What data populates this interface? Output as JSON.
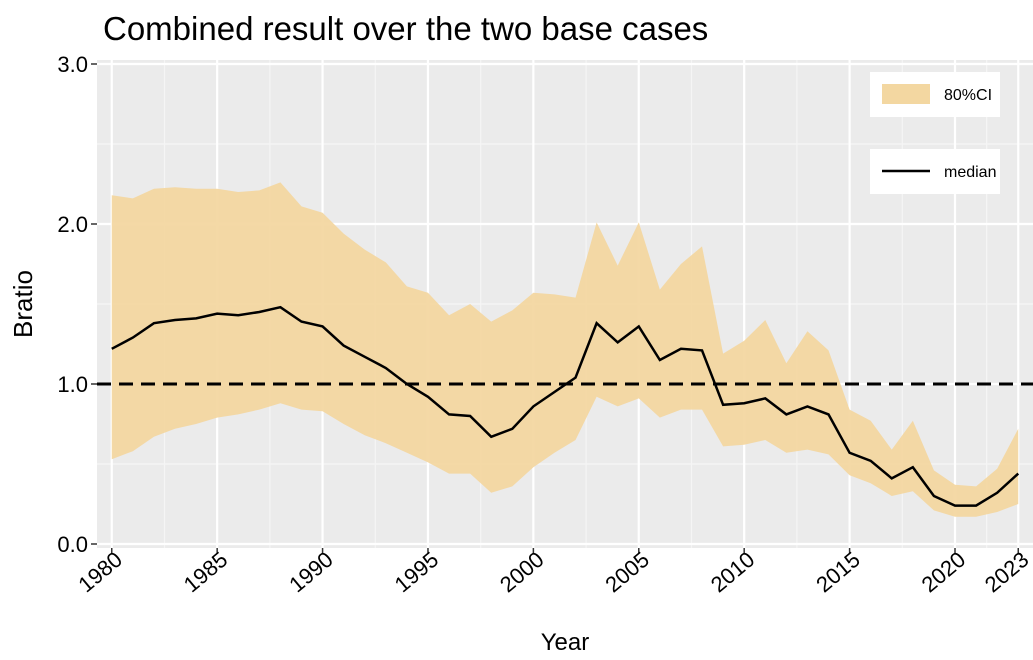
{
  "chart_data": {
    "type": "ribbon-line",
    "title": "Combined result over the two base cases",
    "xlabel": "Year",
    "ylabel": "Bratio",
    "x": [
      1980,
      1981,
      1982,
      1983,
      1984,
      1985,
      1986,
      1987,
      1988,
      1989,
      1990,
      1991,
      1992,
      1993,
      1994,
      1995,
      1996,
      1997,
      1998,
      1999,
      2000,
      2001,
      2002,
      2003,
      2004,
      2005,
      2006,
      2007,
      2008,
      2009,
      2010,
      2011,
      2012,
      2013,
      2014,
      2015,
      2016,
      2017,
      2018,
      2019,
      2020,
      2021,
      2022,
      2023
    ],
    "series": [
      {
        "name": "80%CI",
        "color": "#f3d7a1",
        "upper": [
          2.18,
          2.16,
          2.22,
          2.23,
          2.22,
          2.22,
          2.2,
          2.21,
          2.26,
          2.11,
          2.07,
          1.94,
          1.84,
          1.76,
          1.61,
          1.57,
          1.43,
          1.5,
          1.39,
          1.46,
          1.57,
          1.56,
          1.54,
          2.01,
          1.74,
          2.01,
          1.59,
          1.75,
          1.86,
          1.19,
          1.27,
          1.4,
          1.13,
          1.33,
          1.21,
          0.84,
          0.77,
          0.59,
          0.77,
          0.46,
          0.37,
          0.36,
          0.47,
          0.72
        ],
        "lower": [
          0.53,
          0.58,
          0.67,
          0.72,
          0.75,
          0.79,
          0.81,
          0.84,
          0.88,
          0.84,
          0.83,
          0.75,
          0.68,
          0.63,
          0.57,
          0.51,
          0.44,
          0.44,
          0.32,
          0.36,
          0.48,
          0.57,
          0.65,
          0.92,
          0.86,
          0.91,
          0.79,
          0.84,
          0.84,
          0.61,
          0.62,
          0.65,
          0.57,
          0.59,
          0.56,
          0.43,
          0.38,
          0.3,
          0.33,
          0.21,
          0.17,
          0.17,
          0.2,
          0.25
        ]
      },
      {
        "name": "median",
        "color": "#000000",
        "values": [
          1.22,
          1.29,
          1.38,
          1.4,
          1.41,
          1.44,
          1.43,
          1.45,
          1.48,
          1.39,
          1.36,
          1.24,
          1.17,
          1.1,
          1.0,
          0.92,
          0.81,
          0.8,
          0.67,
          0.72,
          0.86,
          0.95,
          1.04,
          1.38,
          1.26,
          1.36,
          1.15,
          1.22,
          1.21,
          0.87,
          0.88,
          0.91,
          0.81,
          0.86,
          0.81,
          0.57,
          0.52,
          0.41,
          0.48,
          0.3,
          0.24,
          0.24,
          0.32,
          0.44
        ]
      }
    ],
    "hline": 1,
    "xlim": [
      1979.3,
      2023.7
    ],
    "xticks": [
      1980,
      1985,
      1990,
      1995,
      2000,
      2005,
      2010,
      2015,
      2020,
      2023
    ],
    "ylim": [
      -0.025,
      3.025
    ],
    "yticks": [
      {
        "value": 0,
        "label": "0.0"
      },
      {
        "value": 1,
        "label": "1.0"
      },
      {
        "value": 2,
        "label": "2.0"
      },
      {
        "value": 3,
        "label": "3.0"
      }
    ],
    "grid": true
  }
}
